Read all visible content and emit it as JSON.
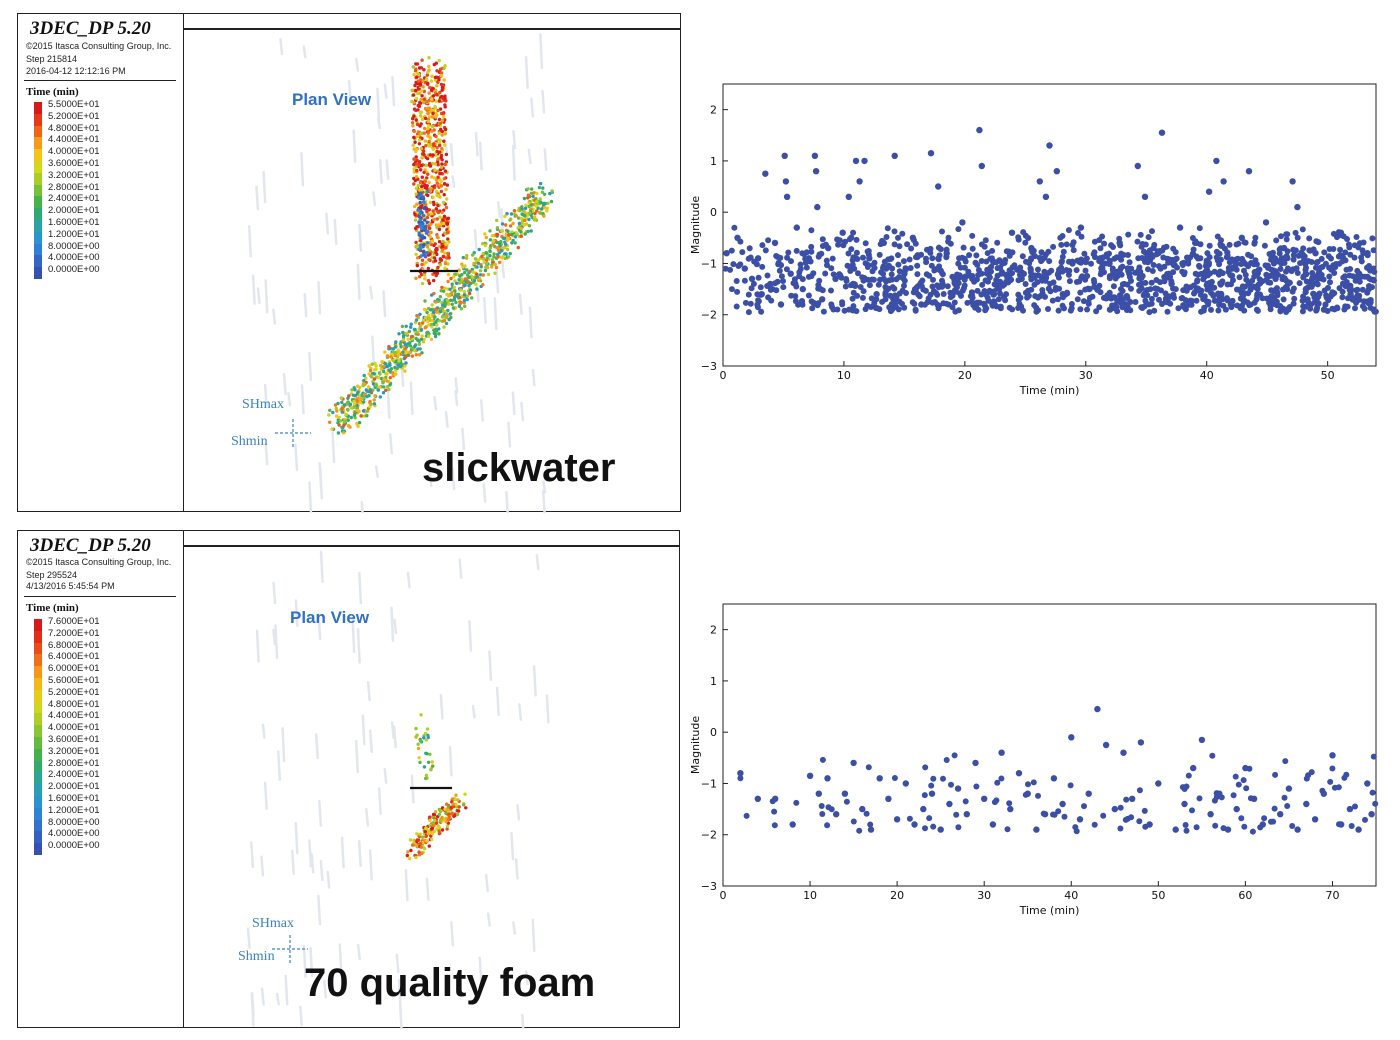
{
  "colors": {
    "point": "#3b4fa6",
    "accent_blue": "#2f72c4",
    "legend_scale": [
      "#d7191c",
      "#e8361b",
      "#f0641a",
      "#f59a1a",
      "#f4c418",
      "#d8d61a",
      "#aacd2a",
      "#78c03a",
      "#47b14a",
      "#30a874",
      "#2aa2a6",
      "#2b94cc",
      "#2f7fd6",
      "#3366c8",
      "#3652b0"
    ]
  },
  "top_panel": {
    "app_title": "3DEC_DP 5.20",
    "copyright": "©2015 Itasca Consulting Group, Inc.",
    "step": "Step 215814",
    "timestamp": "2016-04-12 12:12:16 PM",
    "legend_title": "Time (min)",
    "legend_values": [
      "5.5000E+01",
      "5.2000E+01",
      "4.8000E+01",
      "4.4000E+01",
      "4.0000E+01",
      "3.6000E+01",
      "3.2000E+01",
      "2.8000E+01",
      "2.4000E+01",
      "2.0000E+01",
      "1.6000E+01",
      "1.2000E+01",
      "8.0000E+00",
      "4.0000E+00",
      "0.0000E+00"
    ],
    "plan_view": "Plan View",
    "shmax": "SHmax",
    "shmin": "Shmin",
    "fluid_label": "slickwater"
  },
  "bottom_panel": {
    "app_title": "3DEC_DP 5.20",
    "copyright": "©2015 Itasca Consulting Group, Inc.",
    "step": "Step 295524",
    "timestamp": "4/13/2016 5:45:54 PM",
    "legend_title": "Time (min)",
    "legend_values": [
      "7.6000E+01",
      "7.2000E+01",
      "6.8000E+01",
      "6.4000E+01",
      "6.0000E+01",
      "5.6000E+01",
      "5.2000E+01",
      "4.8000E+01",
      "4.4000E+01",
      "4.0000E+01",
      "3.6000E+01",
      "3.2000E+01",
      "2.8000E+01",
      "2.4000E+01",
      "2.0000E+01",
      "1.6000E+01",
      "1.2000E+01",
      "8.0000E+00",
      "4.0000E+00",
      "0.0000E+00"
    ],
    "plan_view": "Plan View",
    "shmax": "SHmax",
    "shmin": "Shmin",
    "fluid_label": "70 quality foam"
  },
  "chart_data": [
    {
      "type": "scatter",
      "xlabel": "Time (min)",
      "ylabel": "Magnitude",
      "xlim": [
        0,
        54
      ],
      "ylim": [
        -3,
        2.5
      ],
      "xticks": [
        "0",
        "10",
        "20",
        "30",
        "40",
        "50"
      ],
      "yticks": [
        "−3",
        "−2",
        "−1",
        "0",
        "1",
        "2"
      ],
      "grid": false,
      "points": [
        [
          0.3,
          -0.8
        ],
        [
          1.2,
          -0.5
        ],
        [
          1.8,
          -1.1
        ],
        [
          2.4,
          -1.3
        ],
        [
          2.9,
          -0.9
        ],
        [
          3.2,
          -1.6
        ],
        [
          3.5,
          0.75
        ],
        [
          3.9,
          -1.4
        ],
        [
          4.3,
          -0.6
        ],
        [
          4.8,
          -1.8
        ],
        [
          5.1,
          1.1
        ],
        [
          5.2,
          0.6
        ],
        [
          5.3,
          0.3
        ],
        [
          5.6,
          -1.2
        ],
        [
          6.1,
          -0.3
        ],
        [
          6.6,
          -1.5
        ],
        [
          7.1,
          -0.9
        ],
        [
          7.6,
          1.1
        ],
        [
          7.7,
          0.8
        ],
        [
          7.8,
          0.1
        ],
        [
          8.2,
          -1.7
        ],
        [
          8.7,
          -0.7
        ],
        [
          9.3,
          -1.3
        ],
        [
          9.9,
          -0.4
        ],
        [
          10.4,
          0.3
        ],
        [
          11.0,
          1.0
        ],
        [
          11.3,
          0.6
        ],
        [
          11.7,
          1.0
        ],
        [
          12.1,
          -0.9
        ],
        [
          12.7,
          -1.6
        ],
        [
          13.3,
          -0.6
        ],
        [
          14.2,
          1.1
        ],
        [
          15.0,
          -1.2
        ],
        [
          15.7,
          -0.5
        ],
        [
          16.4,
          -1.8
        ],
        [
          17.2,
          1.15
        ],
        [
          17.8,
          0.5
        ],
        [
          18.5,
          -0.8
        ],
        [
          19.2,
          -1.4
        ],
        [
          19.8,
          -0.2
        ],
        [
          21.2,
          1.6
        ],
        [
          21.4,
          0.9
        ],
        [
          22.4,
          -1.6
        ],
        [
          23.1,
          -1.0
        ],
        [
          23.9,
          -0.4
        ],
        [
          24.7,
          -1.3
        ],
        [
          25.5,
          -0.7
        ],
        [
          26.2,
          0.6
        ],
        [
          26.7,
          0.3
        ],
        [
          27.0,
          1.3
        ],
        [
          27.6,
          0.8
        ],
        [
          28.1,
          -1.6
        ],
        [
          28.9,
          -1.0
        ],
        [
          29.6,
          -0.3
        ],
        [
          30.3,
          -1.5
        ],
        [
          31.2,
          -0.9
        ],
        [
          32.0,
          -1.9
        ],
        [
          32.8,
          -0.6
        ],
        [
          33.6,
          -1.2
        ],
        [
          34.3,
          0.9
        ],
        [
          34.9,
          0.3
        ],
        [
          35.6,
          -0.7
        ],
        [
          36.3,
          1.55
        ],
        [
          37.1,
          -1.4
        ],
        [
          37.8,
          -0.3
        ],
        [
          38.5,
          -1.8
        ],
        [
          39.3,
          -0.9
        ],
        [
          40.2,
          0.4
        ],
        [
          40.8,
          1.0
        ],
        [
          41.4,
          0.6
        ],
        [
          42.1,
          -1.1
        ],
        [
          42.9,
          -0.5
        ],
        [
          43.5,
          0.8
        ],
        [
          44.2,
          -1.6
        ],
        [
          44.9,
          -0.2
        ],
        [
          45.7,
          -1.3
        ],
        [
          46.4,
          -0.7
        ],
        [
          47.1,
          0.6
        ],
        [
          47.5,
          0.1
        ],
        [
          48.2,
          -1.5
        ],
        [
          49.0,
          -0.8
        ],
        [
          49.7,
          -1.9
        ],
        [
          50.4,
          -1.1
        ],
        [
          51.1,
          -0.4
        ],
        [
          51.9,
          -1.6
        ],
        [
          52.6,
          -1.2
        ],
        [
          53.3,
          -0.8
        ],
        [
          53.8,
          -1.9
        ]
      ]
    },
    {
      "type": "scatter",
      "xlabel": "Time (min)",
      "ylabel": "Magnitude",
      "xlim": [
        0,
        75
      ],
      "ylim": [
        -3,
        2.5
      ],
      "xticks": [
        "0",
        "10",
        "20",
        "30",
        "40",
        "50",
        "60",
        "70"
      ],
      "yticks": [
        "−3",
        "−2",
        "−1",
        "0",
        "1",
        "2"
      ],
      "grid": false,
      "points": [
        [
          2.0,
          -0.8
        ],
        [
          4.0,
          -1.3
        ],
        [
          6.0,
          -1.3
        ],
        [
          8.0,
          -1.8
        ],
        [
          10.0,
          -0.85
        ],
        [
          11.0,
          -1.2
        ],
        [
          12.0,
          -0.9
        ],
        [
          13.0,
          -1.6
        ],
        [
          14.0,
          -1.2
        ],
        [
          15.0,
          -0.6
        ],
        [
          16.0,
          -1.5
        ],
        [
          17.0,
          -1.9
        ],
        [
          18.0,
          -0.9
        ],
        [
          19.0,
          -1.3
        ],
        [
          20.0,
          -1.7
        ],
        [
          21.0,
          -1.0
        ],
        [
          22.0,
          -1.8
        ],
        [
          23.0,
          -1.5
        ],
        [
          24.0,
          -1.2
        ],
        [
          25.0,
          -1.9
        ],
        [
          26.0,
          -1.4
        ],
        [
          27.0,
          -1.1
        ],
        [
          28.0,
          -1.6
        ],
        [
          29.0,
          -0.6
        ],
        [
          30.0,
          -1.3
        ],
        [
          31.0,
          -1.8
        ],
        [
          32.0,
          -0.4
        ],
        [
          33.0,
          -1.5
        ],
        [
          34.0,
          -0.8
        ],
        [
          35.0,
          -1.2
        ],
        [
          36.0,
          -1.9
        ],
        [
          37.0,
          -1.6
        ],
        [
          38.0,
          -0.9
        ],
        [
          39.0,
          -1.4
        ],
        [
          40.0,
          -0.1
        ],
        [
          41.0,
          -1.7
        ],
        [
          42.0,
          -1.2
        ],
        [
          43.0,
          0.45
        ],
        [
          44.0,
          -0.25
        ],
        [
          45.0,
          -1.5
        ],
        [
          46.0,
          -0.4
        ],
        [
          47.0,
          -1.3
        ],
        [
          48.0,
          -0.2
        ],
        [
          49.0,
          -1.8
        ],
        [
          50.0,
          -1.0
        ],
        [
          52.0,
          -1.9
        ],
        [
          53.0,
          -1.4
        ],
        [
          54.0,
          -0.7
        ],
        [
          55.0,
          -0.15
        ],
        [
          56.0,
          -1.6
        ],
        [
          57.0,
          -1.2
        ],
        [
          58.0,
          -1.9
        ],
        [
          59.0,
          -1.5
        ],
        [
          60.0,
          -0.7
        ],
        [
          61.0,
          -1.3
        ],
        [
          62.0,
          -1.8
        ],
        [
          64.0,
          -1.6
        ],
        [
          65.0,
          -1.1
        ],
        [
          66.0,
          -1.9
        ],
        [
          67.0,
          -1.4
        ],
        [
          68.0,
          -1.7
        ],
        [
          69.0,
          -1.2
        ],
        [
          70.0,
          -0.45
        ],
        [
          71.0,
          -1.8
        ],
        [
          72.0,
          -1.5
        ],
        [
          73.0,
          -1.9
        ],
        [
          74.0,
          -1.0
        ],
        [
          74.5,
          -1.6
        ]
      ]
    }
  ]
}
